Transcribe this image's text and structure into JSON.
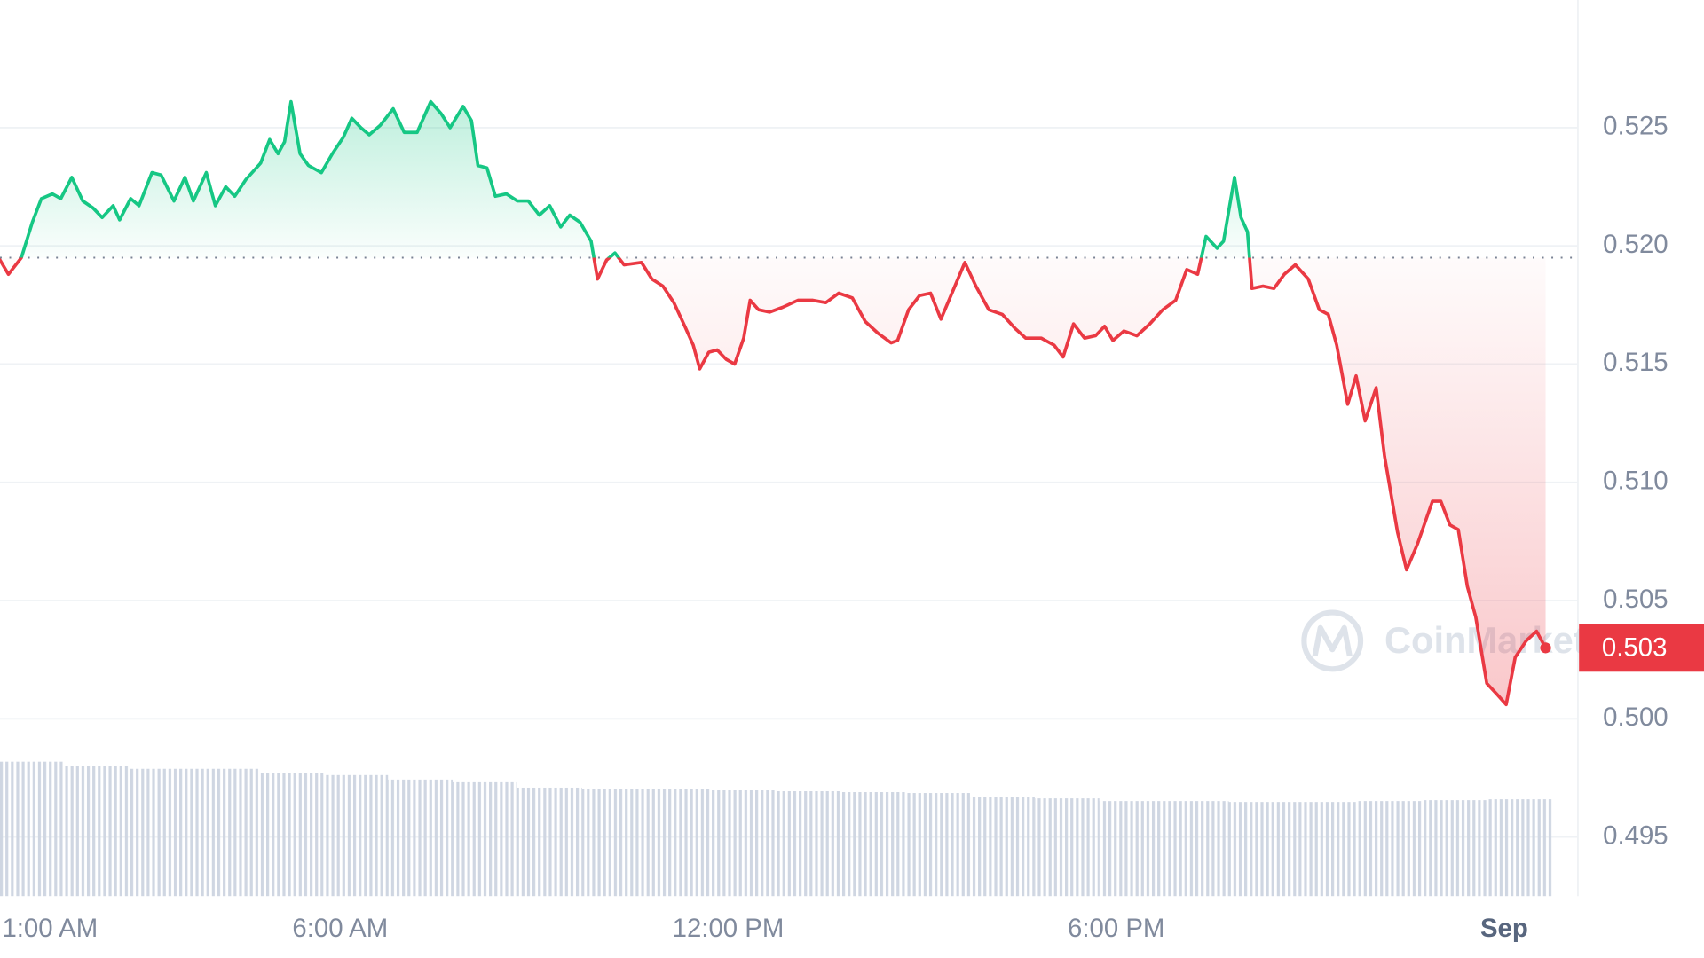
{
  "chart_data": {
    "type": "line",
    "watermark": "CoinMarketCap",
    "up_color": "#16c784",
    "down_color": "#ea3943",
    "grid": true,
    "baseline": 0.5195,
    "current_price": 0.503,
    "xlim": [
      0.74,
      25.14
    ],
    "xticks": [
      {
        "value": 1,
        "label": "1:00 AM"
      },
      {
        "value": 6,
        "label": "6:00 AM"
      },
      {
        "value": 12,
        "label": "12:00 PM"
      },
      {
        "value": 18,
        "label": "6:00 PM"
      },
      {
        "value": 24,
        "label": "Sep"
      }
    ],
    "ylim": [
      0.4925,
      0.5304
    ],
    "yticks": [
      0.495,
      {
        "value": 0.5,
        "label": "0.500"
      },
      0.505,
      {
        "value": 0.51,
        "label": "0.510"
      },
      0.515,
      {
        "value": 0.52,
        "label": "0.520"
      },
      0.525
    ],
    "x": [
      0.74,
      0.87,
      1.07,
      1.24,
      1.38,
      1.55,
      1.68,
      1.85,
      2.02,
      2.18,
      2.32,
      2.49,
      2.59,
      2.76,
      2.89,
      3.09,
      3.23,
      3.43,
      3.6,
      3.73,
      3.93,
      4.07,
      4.23,
      4.37,
      4.54,
      4.77,
      4.91,
      5.04,
      5.14,
      5.24,
      5.38,
      5.51,
      5.71,
      5.88,
      6.05,
      6.18,
      6.32,
      6.45,
      6.62,
      6.82,
      6.99,
      7.19,
      7.4,
      7.56,
      7.7,
      7.9,
      8.03,
      8.13,
      8.27,
      8.4,
      8.57,
      8.74,
      8.91,
      9.08,
      9.24,
      9.41,
      9.55,
      9.71,
      9.88,
      9.98,
      10.12,
      10.25,
      10.39,
      10.66,
      10.82,
      10.99,
      11.16,
      11.33,
      11.46,
      11.56,
      11.7,
      11.83,
      11.97,
      12.1,
      12.24,
      12.34,
      12.47,
      12.64,
      12.84,
      13.08,
      13.31,
      13.51,
      13.71,
      13.92,
      14.12,
      14.32,
      14.52,
      14.62,
      14.79,
      14.96,
      15.13,
      15.29,
      15.46,
      15.66,
      15.83,
      16.03,
      16.24,
      16.44,
      16.6,
      16.84,
      17.04,
      17.18,
      17.34,
      17.51,
      17.68,
      17.82,
      17.95,
      18.12,
      18.32,
      18.52,
      18.72,
      18.92,
      19.09,
      19.26,
      19.39,
      19.56,
      19.66,
      19.83,
      19.93,
      20.03,
      20.1,
      20.27,
      20.44,
      20.6,
      20.77,
      20.97,
      21.14,
      21.28,
      21.41,
      21.58,
      21.71,
      21.85,
      22.02,
      22.15,
      22.35,
      22.49,
      22.66,
      22.89,
      23.02,
      23.16,
      23.29,
      23.43,
      23.56,
      23.73,
      23.9,
      24.03,
      24.17,
      24.34,
      24.5,
      24.64
    ],
    "values": [
      0.5194,
      0.5188,
      0.5195,
      0.521,
      0.522,
      0.5222,
      0.522,
      0.5229,
      0.5219,
      0.5216,
      0.5212,
      0.5217,
      0.5211,
      0.522,
      0.5217,
      0.5231,
      0.523,
      0.5219,
      0.5229,
      0.5219,
      0.5231,
      0.5217,
      0.5225,
      0.5221,
      0.5228,
      0.5235,
      0.5245,
      0.5239,
      0.5244,
      0.5261,
      0.5239,
      0.5234,
      0.5231,
      0.5239,
      0.5246,
      0.5254,
      0.525,
      0.5247,
      0.5251,
      0.5258,
      0.5248,
      0.5248,
      0.5261,
      0.5256,
      0.525,
      0.5259,
      0.5253,
      0.5234,
      0.5233,
      0.5221,
      0.5222,
      0.5219,
      0.5219,
      0.5213,
      0.5217,
      0.5208,
      0.5213,
      0.521,
      0.5202,
      0.5186,
      0.5194,
      0.5197,
      0.5192,
      0.5193,
      0.5186,
      0.5183,
      0.5176,
      0.5166,
      0.5158,
      0.5148,
      0.5155,
      0.5156,
      0.5152,
      0.515,
      0.5161,
      0.5177,
      0.5173,
      0.5172,
      0.5174,
      0.5177,
      0.5177,
      0.5176,
      0.518,
      0.5178,
      0.5168,
      0.5163,
      0.5159,
      0.516,
      0.5173,
      0.5179,
      0.518,
      0.5169,
      0.518,
      0.5193,
      0.5183,
      0.5173,
      0.5171,
      0.5165,
      0.5161,
      0.5161,
      0.5158,
      0.5153,
      0.5167,
      0.5161,
      0.5162,
      0.5166,
      0.516,
      0.5164,
      0.5162,
      0.5167,
      0.5173,
      0.5177,
      0.519,
      0.5188,
      0.5204,
      0.5199,
      0.5202,
      0.5229,
      0.5212,
      0.5206,
      0.5182,
      0.5183,
      0.5182,
      0.5188,
      0.5192,
      0.5186,
      0.5173,
      0.5171,
      0.5158,
      0.5133,
      0.5145,
      0.5126,
      0.514,
      0.5111,
      0.5079,
      0.5063,
      0.5074,
      0.5092,
      0.5092,
      0.5082,
      0.508,
      0.5056,
      0.5043,
      0.5015,
      0.501,
      0.5006,
      0.5026,
      0.5033,
      0.5037,
      0.503
    ],
    "y2lim": [
      0,
      100
    ],
    "volume": {
      "axis": "y2",
      "color": "#cfd6e2",
      "x": [
        0.74,
        1.74,
        2.74,
        3.74,
        4.74,
        5.74,
        6.74,
        7.74,
        8.74,
        9.74,
        10.74,
        11.74,
        12.74,
        13.74,
        14.74,
        15.74,
        16.74,
        17.74,
        18.74,
        19.74,
        20.74,
        21.74,
        22.74,
        23.74
      ],
      "values": [
        15.0,
        14.5,
        14.2,
        14.2,
        13.7,
        13.5,
        13.0,
        12.7,
        12.1,
        11.9,
        11.9,
        11.8,
        11.7,
        11.6,
        11.5,
        11.1,
        10.9,
        10.6,
        10.6,
        10.5,
        10.5,
        10.6,
        10.7,
        10.8
      ]
    }
  }
}
